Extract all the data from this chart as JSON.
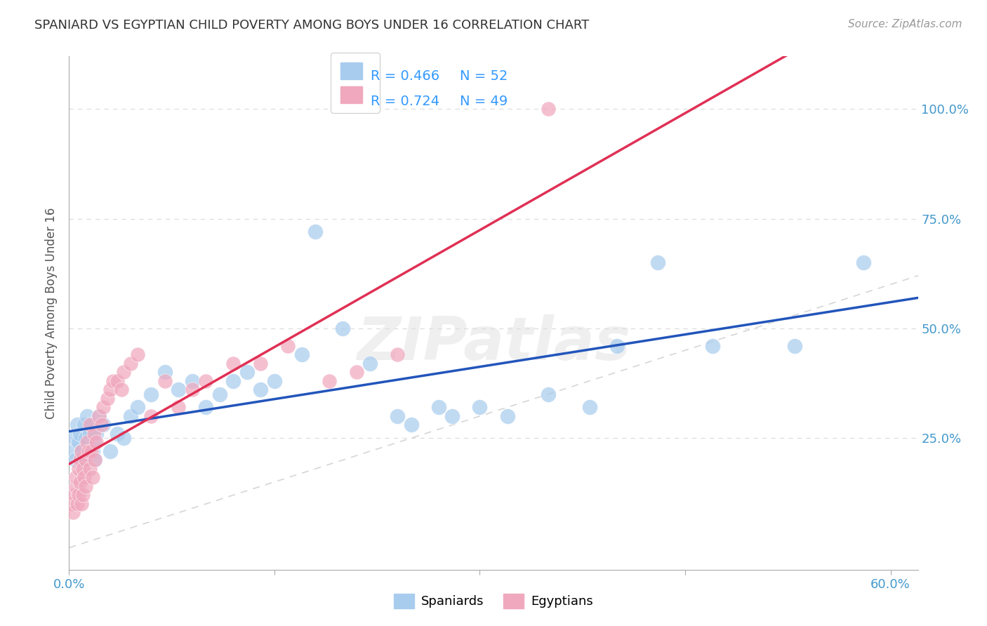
{
  "title": "SPANIARD VS EGYPTIAN CHILD POVERTY AMONG BOYS UNDER 16 CORRELATION CHART",
  "source": "Source: ZipAtlas.com",
  "ylabel_label": "Child Poverty Among Boys Under 16",
  "spaniard_R": 0.466,
  "spaniard_N": 52,
  "egyptian_R": 0.724,
  "egyptian_N": 49,
  "spaniard_color": "#A8CCEE",
  "egyptian_color": "#F0A8BE",
  "spaniard_line_color": "#2255BB",
  "egyptian_line_color": "#E03055",
  "ref_line_color": "#CCCCCC",
  "r_text_color": "#3399FF",
  "background_color": "#FFFFFF",
  "xlim": [
    0.0,
    0.62
  ],
  "ylim": [
    -0.05,
    1.12
  ],
  "grid_color": "#DDDDDD",
  "watermark": "ZIPatlas",
  "sp_x": [
    0.003,
    0.004,
    0.005,
    0.006,
    0.007,
    0.008,
    0.009,
    0.01,
    0.011,
    0.012,
    0.013,
    0.014,
    0.015,
    0.016,
    0.017,
    0.018,
    0.019,
    0.02,
    0.022,
    0.025,
    0.03,
    0.035,
    0.04,
    0.045,
    0.05,
    0.06,
    0.07,
    0.08,
    0.09,
    0.1,
    0.11,
    0.12,
    0.13,
    0.14,
    0.15,
    0.17,
    0.18,
    0.2,
    0.22,
    0.24,
    0.25,
    0.27,
    0.28,
    0.3,
    0.32,
    0.35,
    0.38,
    0.4,
    0.43,
    0.47,
    0.53,
    0.58
  ],
  "sp_y": [
    0.22,
    0.25,
    0.2,
    0.28,
    0.24,
    0.26,
    0.22,
    0.2,
    0.28,
    0.25,
    0.3,
    0.24,
    0.26,
    0.28,
    0.22,
    0.24,
    0.2,
    0.26,
    0.3,
    0.28,
    0.22,
    0.26,
    0.25,
    0.3,
    0.32,
    0.35,
    0.4,
    0.36,
    0.38,
    0.32,
    0.35,
    0.38,
    0.4,
    0.36,
    0.38,
    0.44,
    0.72,
    0.5,
    0.42,
    0.3,
    0.28,
    0.32,
    0.3,
    0.32,
    0.3,
    0.35,
    0.32,
    0.46,
    0.65,
    0.46,
    0.46,
    0.65
  ],
  "eg_x": [
    0.002,
    0.003,
    0.004,
    0.005,
    0.005,
    0.006,
    0.007,
    0.007,
    0.008,
    0.008,
    0.009,
    0.009,
    0.01,
    0.01,
    0.011,
    0.012,
    0.012,
    0.013,
    0.014,
    0.015,
    0.015,
    0.016,
    0.017,
    0.018,
    0.019,
    0.02,
    0.022,
    0.024,
    0.025,
    0.028,
    0.03,
    0.032,
    0.035,
    0.038,
    0.04,
    0.045,
    0.05,
    0.06,
    0.07,
    0.08,
    0.09,
    0.1,
    0.12,
    0.14,
    0.16,
    0.19,
    0.21,
    0.24,
    0.35
  ],
  "eg_y": [
    0.1,
    0.08,
    0.12,
    0.14,
    0.16,
    0.1,
    0.18,
    0.12,
    0.2,
    0.15,
    0.1,
    0.22,
    0.12,
    0.18,
    0.16,
    0.14,
    0.2,
    0.24,
    0.22,
    0.18,
    0.28,
    0.22,
    0.16,
    0.26,
    0.2,
    0.24,
    0.3,
    0.28,
    0.32,
    0.34,
    0.36,
    0.38,
    0.38,
    0.36,
    0.4,
    0.42,
    0.44,
    0.3,
    0.38,
    0.32,
    0.36,
    0.38,
    0.42,
    0.42,
    0.46,
    0.38,
    0.4,
    0.44,
    1.0
  ]
}
